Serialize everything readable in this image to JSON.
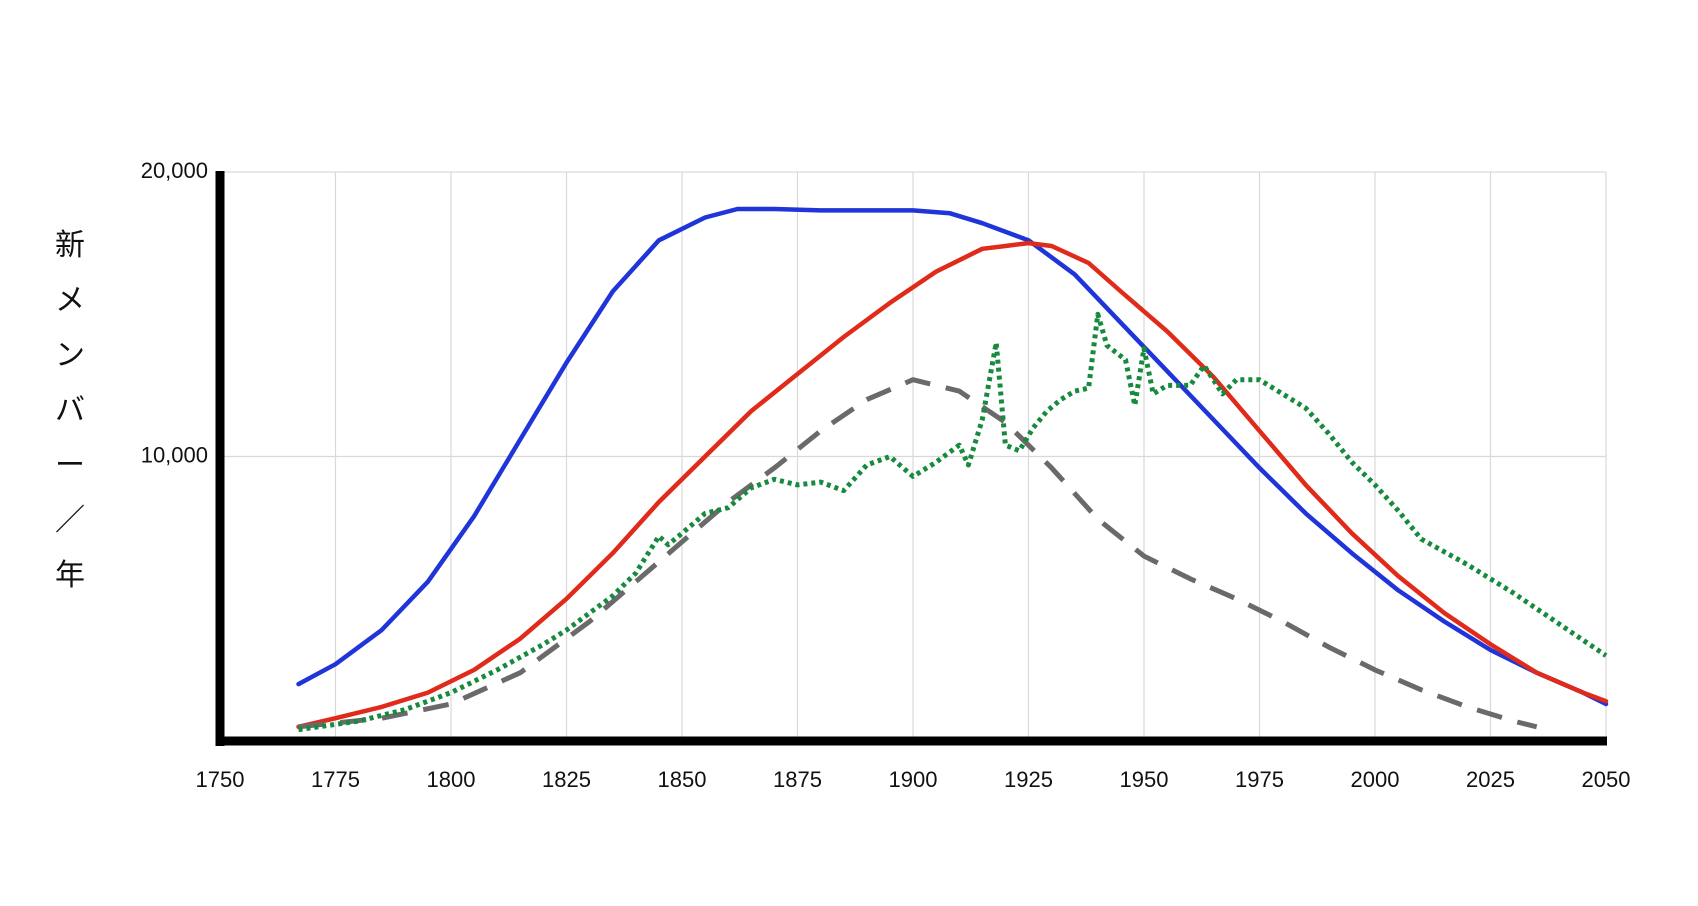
{
  "chart_data": {
    "type": "line",
    "ylabel": "新メンバー／年",
    "xlim": [
      1750,
      2050
    ],
    "ylim": [
      0,
      20000
    ],
    "x_ticks": [
      "1750",
      "1775",
      "1800",
      "1825",
      "1850",
      "1875",
      "1900",
      "1925",
      "1950",
      "1975",
      "2000",
      "2025",
      "2050"
    ],
    "y_ticks": [
      "10,000",
      "20,000"
    ],
    "y_tick_values": [
      10000,
      20000
    ],
    "grid": true,
    "series": [
      {
        "style": "solid",
        "color": "#1f35d9",
        "points": [
          [
            1767,
            2000
          ],
          [
            1775,
            2700
          ],
          [
            1785,
            3900
          ],
          [
            1795,
            5600
          ],
          [
            1805,
            7900
          ],
          [
            1815,
            10600
          ],
          [
            1825,
            13300
          ],
          [
            1835,
            15800
          ],
          [
            1845,
            17600
          ],
          [
            1855,
            18400
          ],
          [
            1862,
            18700
          ],
          [
            1870,
            18700
          ],
          [
            1880,
            18650
          ],
          [
            1890,
            18650
          ],
          [
            1900,
            18650
          ],
          [
            1908,
            18550
          ],
          [
            1915,
            18200
          ],
          [
            1925,
            17600
          ],
          [
            1935,
            16400
          ],
          [
            1945,
            14700
          ],
          [
            1955,
            13000
          ],
          [
            1965,
            11300
          ],
          [
            1975,
            9600
          ],
          [
            1985,
            8000
          ],
          [
            1995,
            6600
          ],
          [
            2005,
            5300
          ],
          [
            2015,
            4200
          ],
          [
            2025,
            3200
          ],
          [
            2035,
            2400
          ],
          [
            2045,
            1700
          ],
          [
            2050,
            1300
          ]
        ]
      },
      {
        "style": "solid",
        "color": "#e02a1a",
        "points": [
          [
            1767,
            500
          ],
          [
            1775,
            800
          ],
          [
            1785,
            1200
          ],
          [
            1795,
            1700
          ],
          [
            1805,
            2500
          ],
          [
            1815,
            3600
          ],
          [
            1825,
            5000
          ],
          [
            1835,
            6600
          ],
          [
            1845,
            8400
          ],
          [
            1855,
            10000
          ],
          [
            1865,
            11600
          ],
          [
            1875,
            12900
          ],
          [
            1885,
            14200
          ],
          [
            1895,
            15400
          ],
          [
            1905,
            16500
          ],
          [
            1915,
            17300
          ],
          [
            1920,
            17400
          ],
          [
            1925,
            17500
          ],
          [
            1930,
            17400
          ],
          [
            1938,
            16800
          ],
          [
            1945,
            15800
          ],
          [
            1955,
            14400
          ],
          [
            1965,
            12800
          ],
          [
            1975,
            10900
          ],
          [
            1985,
            9000
          ],
          [
            1995,
            7300
          ],
          [
            2005,
            5800
          ],
          [
            2015,
            4500
          ],
          [
            2025,
            3400
          ],
          [
            2035,
            2400
          ],
          [
            2045,
            1700
          ],
          [
            2050,
            1400
          ]
        ]
      },
      {
        "style": "dashed",
        "color": "#6a6a6a",
        "points": [
          [
            1767,
            500
          ],
          [
            1785,
            800
          ],
          [
            1800,
            1300
          ],
          [
            1815,
            2400
          ],
          [
            1830,
            4200
          ],
          [
            1845,
            6300
          ],
          [
            1860,
            8400
          ],
          [
            1870,
            9600
          ],
          [
            1880,
            10900
          ],
          [
            1890,
            12000
          ],
          [
            1900,
            12700
          ],
          [
            1910,
            12300
          ],
          [
            1920,
            11200
          ],
          [
            1930,
            9600
          ],
          [
            1940,
            7800
          ],
          [
            1950,
            6500
          ],
          [
            1960,
            5700
          ],
          [
            1970,
            5000
          ],
          [
            1980,
            4200
          ],
          [
            1990,
            3300
          ],
          [
            2000,
            2500
          ],
          [
            2010,
            1800
          ],
          [
            2020,
            1200
          ],
          [
            2030,
            700
          ],
          [
            2035,
            500
          ]
        ]
      },
      {
        "style": "dotted",
        "color": "#178a3e",
        "points": [
          [
            1767,
            400
          ],
          [
            1780,
            700
          ],
          [
            1790,
            1100
          ],
          [
            1800,
            1700
          ],
          [
            1810,
            2500
          ],
          [
            1820,
            3400
          ],
          [
            1825,
            3900
          ],
          [
            1830,
            4500
          ],
          [
            1835,
            5100
          ],
          [
            1840,
            5900
          ],
          [
            1845,
            7200
          ],
          [
            1847,
            6900
          ],
          [
            1850,
            7300
          ],
          [
            1855,
            8000
          ],
          [
            1860,
            8200
          ],
          [
            1865,
            8900
          ],
          [
            1870,
            9200
          ],
          [
            1875,
            9000
          ],
          [
            1880,
            9100
          ],
          [
            1885,
            8800
          ],
          [
            1890,
            9700
          ],
          [
            1895,
            10000
          ],
          [
            1900,
            9300
          ],
          [
            1905,
            9800
          ],
          [
            1910,
            10400
          ],
          [
            1912,
            9700
          ],
          [
            1915,
            11300
          ],
          [
            1918,
            14000
          ],
          [
            1920,
            10400
          ],
          [
            1923,
            10200
          ],
          [
            1926,
            11000
          ],
          [
            1929,
            11600
          ],
          [
            1932,
            12000
          ],
          [
            1935,
            12300
          ],
          [
            1938,
            12400
          ],
          [
            1940,
            15000
          ],
          [
            1942,
            13900
          ],
          [
            1946,
            13400
          ],
          [
            1948,
            11800
          ],
          [
            1950,
            13800
          ],
          [
            1952,
            12200
          ],
          [
            1955,
            12500
          ],
          [
            1960,
            12500
          ],
          [
            1963,
            13200
          ],
          [
            1967,
            12200
          ],
          [
            1970,
            12700
          ],
          [
            1975,
            12700
          ],
          [
            1980,
            12200
          ],
          [
            1985,
            11700
          ],
          [
            1990,
            10800
          ],
          [
            1995,
            9800
          ],
          [
            2000,
            9000
          ],
          [
            2005,
            8100
          ],
          [
            2010,
            7100
          ],
          [
            2020,
            6200
          ],
          [
            2030,
            5200
          ],
          [
            2040,
            4100
          ],
          [
            2050,
            3000
          ]
        ]
      }
    ]
  }
}
